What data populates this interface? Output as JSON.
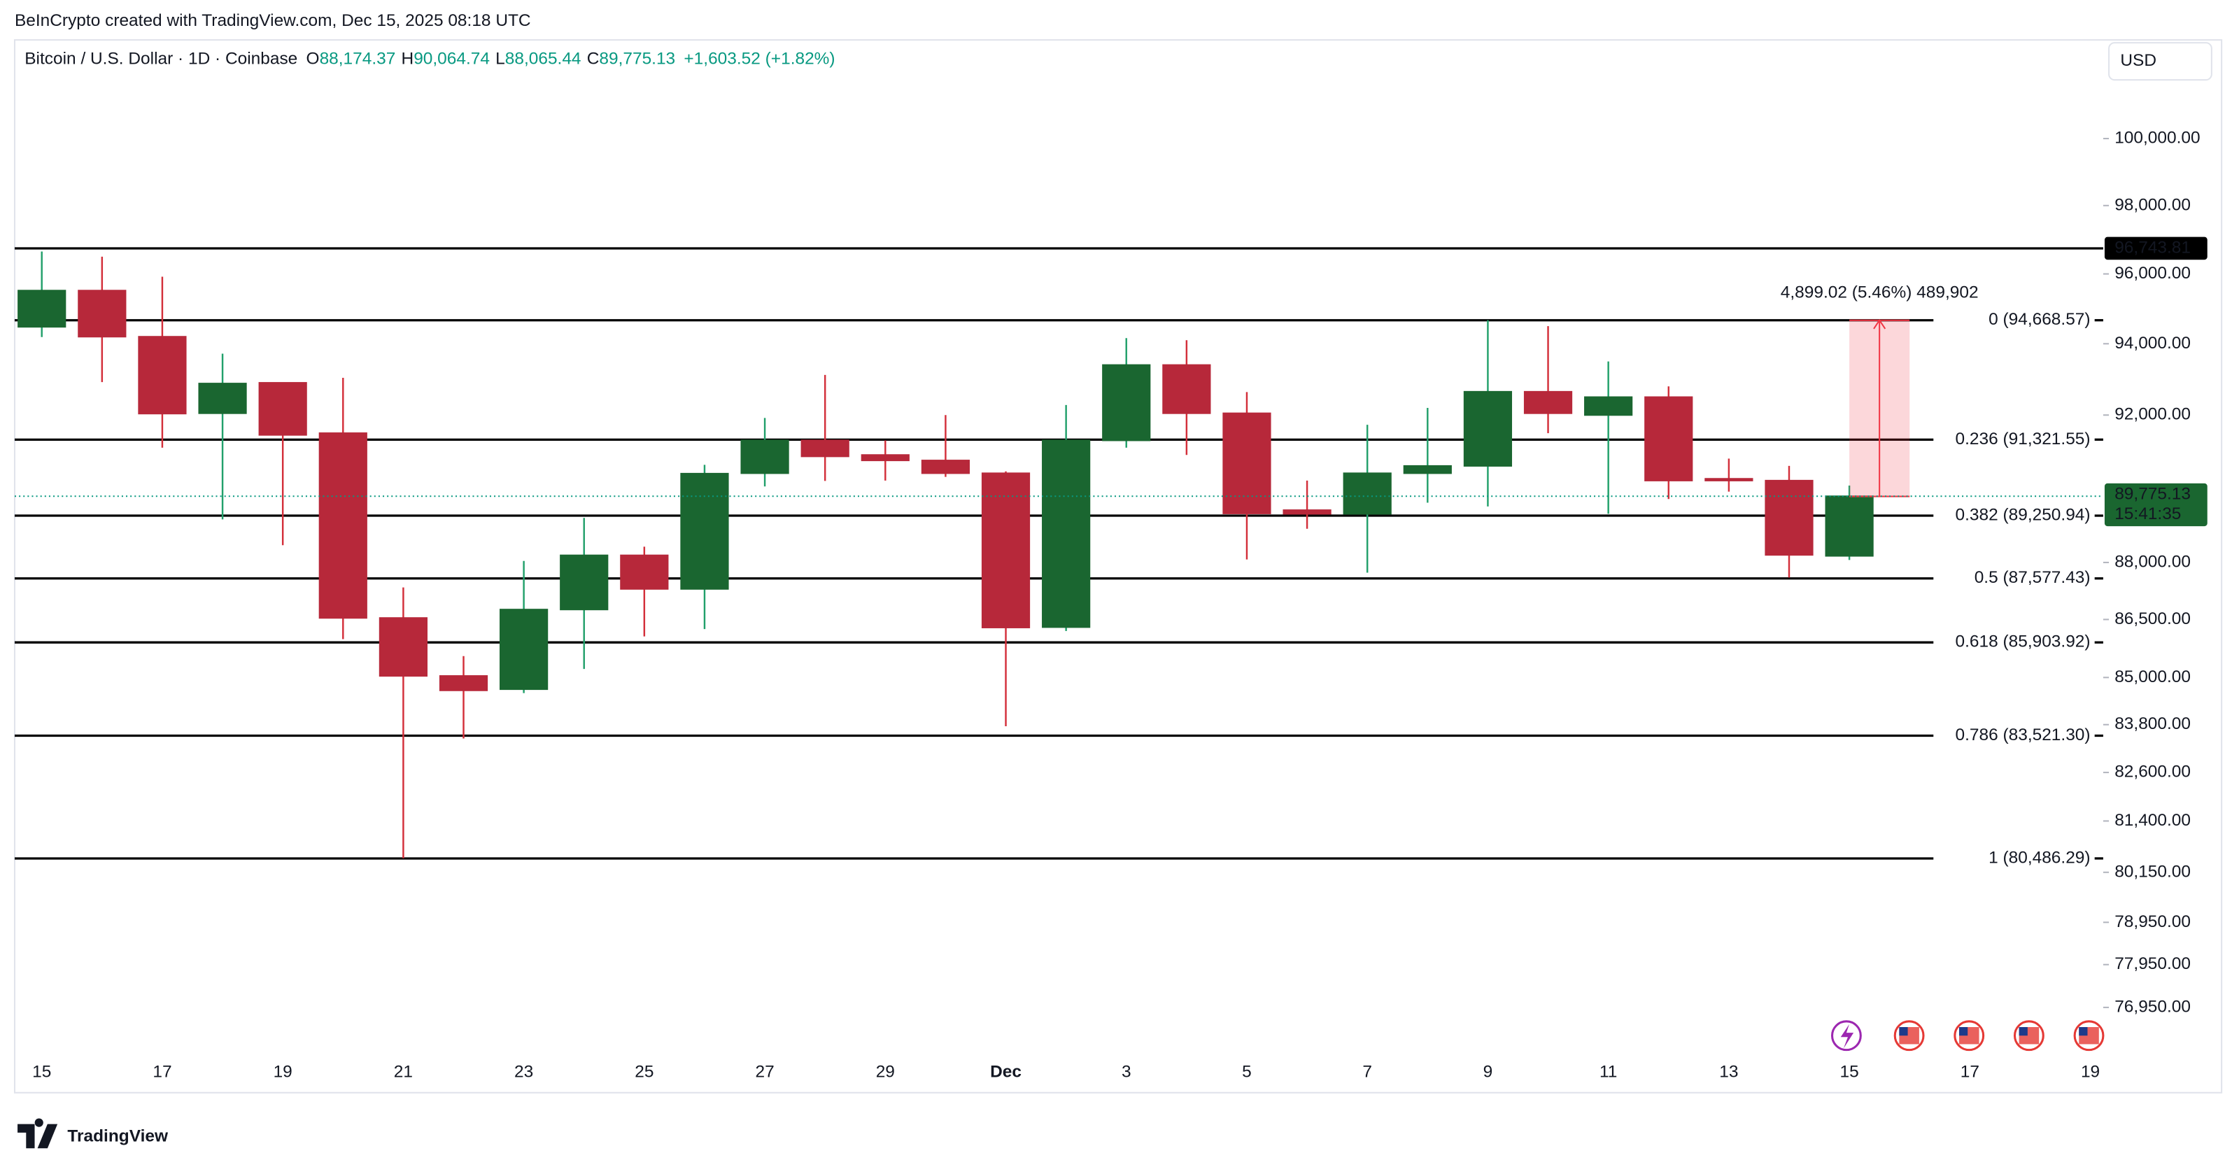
{
  "header": "BeInCrypto created with TradingView.com, Dec 15, 2025 08:18 UTC",
  "brand": "TradingView",
  "chart_data": {
    "type": "candlestick",
    "title": "Bitcoin / U.S. Dollar · 1D · Coinbase",
    "legend": [
      {
        "key": "O",
        "text": "88,174.37"
      },
      {
        "key": "H",
        "text": "90,064.74"
      },
      {
        "key": "L",
        "text": "88,065.44"
      },
      {
        "key": "C",
        "text": "89,775.13"
      },
      {
        "text": "+1,603.52 (+1.82%)"
      }
    ],
    "currency": "USD",
    "log_scale": true,
    "categories": [
      "15",
      null,
      "17",
      null,
      "19",
      null,
      "21",
      null,
      "23",
      null,
      "25",
      null,
      "27",
      null,
      "29",
      null,
      "Dec",
      null,
      "3",
      null,
      "5",
      null,
      "7",
      null,
      "9",
      null,
      "11",
      null,
      "13",
      null,
      "15",
      null,
      "17",
      null,
      "19"
    ],
    "open": [
      94480,
      95520,
      94200,
      92050,
      92900,
      91500,
      86540,
      85040,
      84700,
      86760,
      88190,
      87300,
      90400,
      91300,
      90900,
      90750,
      90400,
      86300,
      91300,
      93400,
      92050,
      89400,
      89300,
      90400,
      90600,
      92650,
      92000,
      92500,
      90250,
      90200,
      88174.37,
      null,
      null,
      null,
      null
    ],
    "high": [
      96650,
      96500,
      95920,
      93720,
      92900,
      93040,
      87340,
      85550,
      88040,
      89190,
      88420,
      90630,
      91920,
      93120,
      91300,
      92000,
      90450,
      92280,
      94160,
      94100,
      92640,
      90200,
      91730,
      92200,
      94670,
      94500,
      93500,
      92800,
      90800,
      90600,
      90064.74,
      null,
      null,
      null,
      null
    ],
    "low": [
      94190,
      92920,
      91100,
      89150,
      88460,
      85990,
      80490,
      83450,
      84600,
      85220,
      86060,
      86250,
      90040,
      90190,
      90200,
      90300,
      83760,
      86200,
      91100,
      90900,
      88080,
      88900,
      87730,
      89600,
      89500,
      91500,
      89300,
      89700,
      89900,
      87600,
      88065.44,
      null,
      null,
      null,
      null
    ],
    "close": [
      95520,
      94200,
      92040,
      92880,
      91450,
      86540,
      85040,
      84670,
      86760,
      88190,
      87300,
      90390,
      91300,
      90860,
      90750,
      90400,
      86290,
      91300,
      93400,
      92050,
      89310,
      89300,
      90400,
      90600,
      92650,
      92050,
      92500,
      90200,
      90200,
      88200,
      89775.13,
      null,
      null,
      null,
      null
    ],
    "up_color": "#1a6630",
    "down_color": "#b7283a",
    "ylim": [
      75840,
      102930
    ],
    "yticks": [
      {
        "value": 100000,
        "label": "100,000.00"
      },
      {
        "value": 98000,
        "label": "98,000.00"
      },
      {
        "value": 96000,
        "label": "96,000.00"
      },
      {
        "value": 94000,
        "label": "94,000.00"
      },
      {
        "value": 92000,
        "label": "92,000.00"
      },
      {
        "value": 88000,
        "label": "88,000.00"
      },
      {
        "value": 86500,
        "label": "86,500.00"
      },
      {
        "value": 85000,
        "label": "85,000.00"
      },
      {
        "value": 83800,
        "label": "83,800.00"
      },
      {
        "value": 82600,
        "label": "82,600.00"
      },
      {
        "value": 81400,
        "label": "81,400.00"
      },
      {
        "value": 80150,
        "label": "80,150.00"
      },
      {
        "value": 78950,
        "label": "78,950.00"
      },
      {
        "value": 77950,
        "label": "77,950.00"
      },
      {
        "value": 76950,
        "label": "76,950.00"
      }
    ],
    "hlines": [
      {
        "value": 96743.81,
        "label": "96,743.81"
      }
    ],
    "levels": [
      {
        "value": 94668.57,
        "label": "0 (94,668.57)"
      },
      {
        "value": 91321.55,
        "label": "0.236 (91,321.55)"
      },
      {
        "value": 89250.94,
        "label": "0.382 (89,250.94)"
      },
      {
        "value": 87577.43,
        "label": "0.5 (87,577.43)"
      },
      {
        "value": 85903.92,
        "label": "0.618 (85,903.92)"
      },
      {
        "value": 83521.3,
        "label": "0.786 (83,521.30)"
      },
      {
        "value": 80486.29,
        "label": "1 (80,486.29)"
      }
    ],
    "measure": {
      "from": 89769.55,
      "to": 94668.57,
      "label": "4,899.02 (5.46%) 489,902"
    },
    "last_price": {
      "value": 89775.13,
      "label": "89,775.13",
      "countdown": "15:41:35"
    }
  }
}
